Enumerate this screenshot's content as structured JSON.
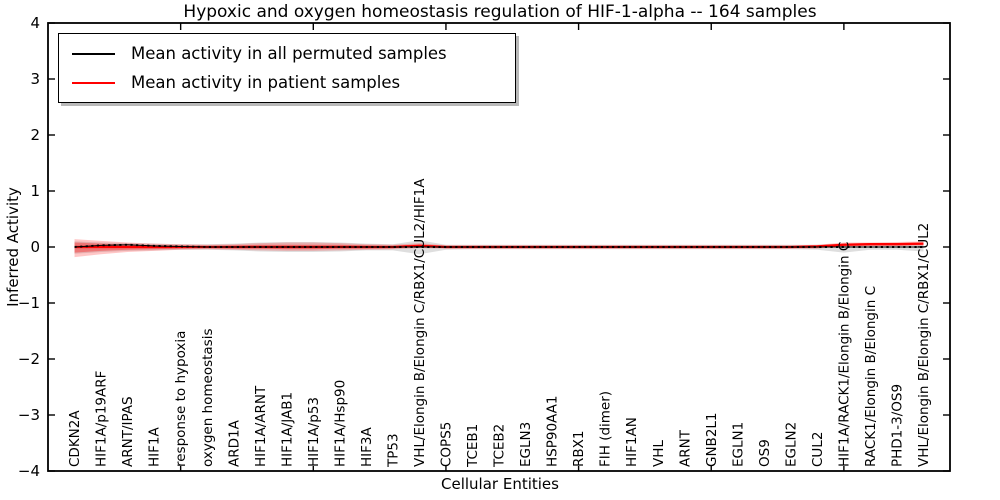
{
  "chart_data": {
    "type": "line",
    "title": "Hypoxic and oxygen homeostasis regulation of HIF-1-alpha -- 164 samples",
    "xlabel": "Cellular Entities",
    "ylabel": "Inferred Activity",
    "ylim": [
      -4,
      4
    ],
    "yticks": [
      -4,
      -3,
      -2,
      -1,
      0,
      1,
      2,
      3,
      4
    ],
    "grid": false,
    "legend_position": "upper left",
    "top_tick_categories": [
      4,
      9,
      14,
      19,
      24,
      29
    ],
    "categories": [
      "CDKN2A",
      "HIF1A/p19ARF",
      "ARNT/IPAS",
      "HIF1A",
      "response to hypoxia",
      "oxygen homeostasis",
      "ARD1A",
      "HIF1A/ARNT",
      "HIF1A/JAB1",
      "HIF1A/p53",
      "HIF1A/Hsp90",
      "HIF3A",
      "TP53",
      "VHL/Elongin B/Elongin C/RBX1/CUL2/HIF1A",
      "COPS5",
      "TCEB1",
      "TCEB2",
      "EGLN3",
      "HSP90AA1",
      "RBX1",
      "FIH (dimer)",
      "HIF1AN",
      "VHL",
      "ARNT",
      "GNB2L1",
      "EGLN1",
      "OS9",
      "EGLN2",
      "CUL2",
      "HIF1A/RACK1/Elongin B/Elongin C",
      "RACK1/Elongin B/Elongin C",
      "PHD1-3/OS9",
      "VHL/Elongin B/Elongin C/RBX1/CUL2"
    ],
    "series": [
      {
        "name": "Mean activity in all permuted samples",
        "color": "#000000",
        "values": [
          0.0,
          0.03,
          0.04,
          0.02,
          0.01,
          0,
          0,
          0,
          0,
          0,
          0,
          0,
          0,
          0,
          0,
          0,
          0,
          0,
          0,
          0,
          0,
          0,
          0,
          0,
          0,
          0,
          0,
          0,
          0,
          0,
          0,
          0,
          0
        ]
      },
      {
        "name": "Mean activity in patient samples",
        "color": "#ff0000",
        "values": [
          0,
          0,
          0,
          0,
          0,
          0,
          0,
          0,
          0,
          0,
          0,
          0,
          0,
          0.02,
          0,
          0,
          0,
          0,
          0,
          0,
          0,
          0,
          0,
          0,
          0,
          0,
          0,
          0,
          0.01,
          0.04,
          0.05,
          0.05,
          0.06
        ]
      }
    ],
    "bands": [
      {
        "name": "permuted-range",
        "color": "#000000",
        "opacity": 0.13,
        "upper": [
          0.1,
          0.08,
          0.07,
          0.06,
          0.05,
          0.05,
          0.06,
          0.08,
          0.09,
          0.09,
          0.08,
          0.06,
          0.05,
          0.12,
          0.04,
          0.04,
          0.04,
          0.04,
          0.04,
          0.04,
          0.04,
          0.04,
          0.04,
          0.04,
          0.04,
          0.04,
          0.04,
          0.04,
          0.04,
          0.06,
          0.05,
          0.05,
          0.07
        ],
        "lower": [
          -0.12,
          -0.09,
          -0.07,
          -0.06,
          -0.05,
          -0.05,
          -0.06,
          -0.08,
          -0.09,
          -0.09,
          -0.08,
          -0.06,
          -0.06,
          -0.13,
          -0.05,
          -0.04,
          -0.04,
          -0.04,
          -0.04,
          -0.04,
          -0.04,
          -0.04,
          -0.04,
          -0.04,
          -0.04,
          -0.04,
          -0.04,
          -0.04,
          -0.05,
          -0.1,
          -0.05,
          -0.05,
          -0.08
        ]
      },
      {
        "name": "patient-range-outer",
        "color": "#ff0000",
        "opacity": 0.22,
        "upper": [
          0.14,
          0.11,
          0.08,
          0.06,
          0.05,
          0.04,
          0.05,
          0.07,
          0.08,
          0.08,
          0.07,
          0.05,
          0.04,
          0.07,
          0.03,
          0.03,
          0.03,
          0.03,
          0.03,
          0.03,
          0.03,
          0.03,
          0.03,
          0.03,
          0.03,
          0.03,
          0.03,
          0.03,
          0.04,
          0.08,
          0.08,
          0.09,
          0.1
        ],
        "lower": [
          -0.18,
          -0.13,
          -0.09,
          -0.07,
          -0.05,
          -0.04,
          -0.05,
          -0.06,
          -0.07,
          -0.07,
          -0.06,
          -0.05,
          -0.04,
          -0.02,
          -0.03,
          -0.03,
          -0.03,
          -0.03,
          -0.03,
          -0.03,
          -0.03,
          -0.03,
          -0.03,
          -0.03,
          -0.03,
          -0.03,
          -0.03,
          -0.03,
          -0.03,
          0.01,
          0.02,
          0.02,
          0.02
        ]
      },
      {
        "name": "patient-range-inner",
        "color": "#ff0000",
        "opacity": 0.32,
        "upper": [
          0.08,
          0.06,
          0.04,
          0.03,
          0.03,
          0.02,
          0.03,
          0.04,
          0.04,
          0.04,
          0.04,
          0.03,
          0.02,
          0.05,
          0.02,
          0.02,
          0.02,
          0.02,
          0.02,
          0.02,
          0.02,
          0.02,
          0.02,
          0.02,
          0.02,
          0.02,
          0.02,
          0.02,
          0.02,
          0.06,
          0.07,
          0.07,
          0.08
        ],
        "lower": [
          -0.1,
          -0.07,
          -0.05,
          -0.04,
          -0.03,
          -0.02,
          -0.03,
          -0.03,
          -0.04,
          -0.04,
          -0.03,
          -0.03,
          -0.02,
          -0.01,
          -0.02,
          -0.02,
          -0.02,
          -0.02,
          -0.02,
          -0.02,
          -0.02,
          -0.02,
          -0.02,
          -0.02,
          -0.02,
          -0.02,
          -0.02,
          -0.02,
          -0.02,
          0.02,
          0.03,
          0.03,
          0.04
        ]
      }
    ],
    "legend": {
      "entries": [
        {
          "label": "Mean activity in all permuted samples",
          "color": "#000000"
        },
        {
          "label": "Mean activity in patient samples",
          "color": "#ff0000"
        }
      ]
    }
  }
}
